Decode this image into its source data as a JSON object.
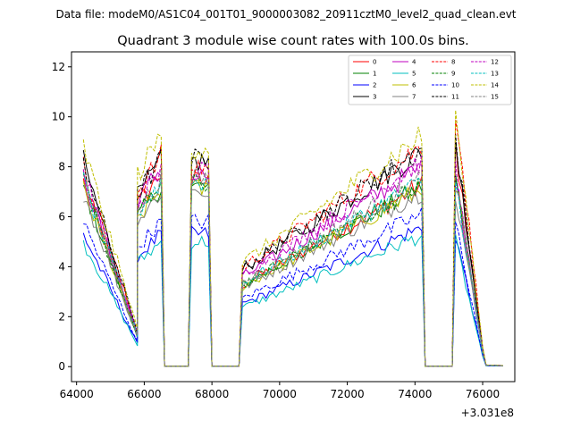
{
  "chart_data": {
    "type": "line",
    "suptitle": "Data file: modeM0/AS1C04_001T01_9000003082_20911cztM0_level2_quad_clean.evt",
    "title": "Quadrant 3 module wise count rates with 100.0s bins.",
    "xlabel": "",
    "ylabel": "",
    "x_offset_label": "+3.031e8",
    "xlim": [
      63850,
      76950
    ],
    "ylim": [
      -0.6,
      12.6
    ],
    "x_ticks": [
      64000,
      66000,
      68000,
      70000,
      72000,
      74000,
      76000
    ],
    "y_ticks": [
      0,
      2,
      4,
      6,
      8,
      10,
      12
    ],
    "legend_location": "top-right",
    "segments": [
      {
        "start": 64200,
        "end": 65800,
        "start_frac": 1.0,
        "end_frac": 0.17
      },
      {
        "start": 65800,
        "end": 66500,
        "start_frac": 0.83,
        "end_frac": 1.0
      },
      {
        "start": 67400,
        "end": 67900,
        "start_frac": 1.0,
        "end_frac": 1.0
      },
      {
        "start": 68900,
        "end": 74200,
        "start_frac": 0.45,
        "end_frac": 1.0
      },
      {
        "start": 75200,
        "end": 76000,
        "start_frac": 1.0,
        "end_frac": 0.08
      },
      {
        "start": 76100,
        "end": 76600,
        "start_frac": 0.08,
        "end_frac": 0.05
      }
    ],
    "series": [
      {
        "name": "0",
        "color": "#ff0000",
        "dash": "solid",
        "level": 7.4,
        "seg_scale": [
          1.0,
          1.05,
          1.0,
          0.98,
          1.2,
          0.1
        ]
      },
      {
        "name": "1",
        "color": "#008000",
        "dash": "solid",
        "level": 7.2,
        "seg_scale": [
          1.0,
          1.0,
          1.0,
          1.0,
          1.05,
          0.1
        ]
      },
      {
        "name": "2",
        "color": "#0000ff",
        "dash": "solid",
        "level": 5.3,
        "seg_scale": [
          1.0,
          1.0,
          1.0,
          1.05,
          1.0,
          0.1
        ]
      },
      {
        "name": "3",
        "color": "#000000",
        "dash": "solid",
        "level": 8.2,
        "seg_scale": [
          1.0,
          1.0,
          1.0,
          1.05,
          1.1,
          0.1
        ]
      },
      {
        "name": "4",
        "color": "#bf00bf",
        "dash": "solid",
        "level": 7.6,
        "seg_scale": [
          1.0,
          1.05,
          1.0,
          1.05,
          1.0,
          0.1
        ]
      },
      {
        "name": "5",
        "color": "#00bfbf",
        "dash": "solid",
        "level": 5.0,
        "seg_scale": [
          1.0,
          1.0,
          1.0,
          1.05,
          1.0,
          0.1
        ]
      },
      {
        "name": "6",
        "color": "#bfbf00",
        "dash": "solid",
        "level": 7.1,
        "seg_scale": [
          1.0,
          1.0,
          1.0,
          1.0,
          1.05,
          0.1
        ]
      },
      {
        "name": "7",
        "color": "#808080",
        "dash": "solid",
        "level": 7.0,
        "seg_scale": [
          1.0,
          1.0,
          1.0,
          1.0,
          1.0,
          0.1
        ]
      },
      {
        "name": "8",
        "color": "#ff0000",
        "dash": "dashed",
        "level": 8.0,
        "seg_scale": [
          1.0,
          1.05,
          1.0,
          1.1,
          1.3,
          0.1
        ]
      },
      {
        "name": "9",
        "color": "#008000",
        "dash": "dashed",
        "level": 7.3,
        "seg_scale": [
          1.0,
          1.0,
          1.0,
          1.0,
          1.05,
          0.1
        ]
      },
      {
        "name": "10",
        "color": "#0000ff",
        "dash": "dashed",
        "level": 5.8,
        "seg_scale": [
          1.0,
          1.0,
          1.0,
          1.05,
          1.0,
          0.1
        ]
      },
      {
        "name": "11",
        "color": "#000000",
        "dash": "dashed",
        "level": 8.3,
        "seg_scale": [
          1.0,
          1.0,
          1.0,
          1.05,
          1.1,
          0.1
        ]
      },
      {
        "name": "12",
        "color": "#bf00bf",
        "dash": "dashed",
        "level": 7.8,
        "seg_scale": [
          1.0,
          1.0,
          1.0,
          1.05,
          1.0,
          0.1
        ]
      },
      {
        "name": "13",
        "color": "#00bfbf",
        "dash": "dashed",
        "level": 7.4,
        "seg_scale": [
          1.0,
          1.0,
          1.0,
          1.0,
          1.0,
          0.1
        ]
      },
      {
        "name": "14",
        "color": "#bfbf00",
        "dash": "dashed",
        "level": 8.8,
        "seg_scale": [
          1.0,
          1.05,
          1.0,
          1.05,
          1.15,
          0.1
        ]
      },
      {
        "name": "15",
        "color": "#808080",
        "dash": "dashed",
        "level": 7.5,
        "seg_scale": [
          1.0,
          1.0,
          1.0,
          1.0,
          1.0,
          0.1
        ]
      }
    ]
  }
}
